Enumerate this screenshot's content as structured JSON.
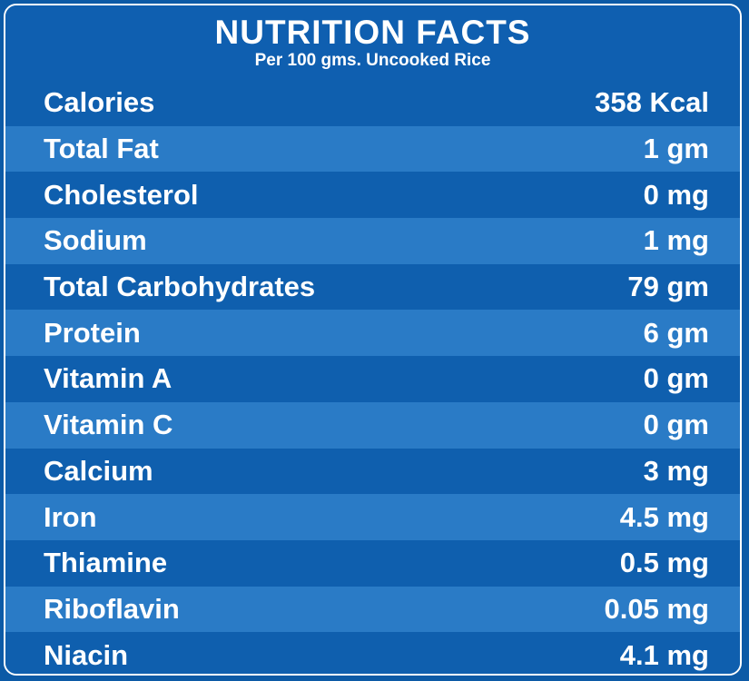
{
  "header": {
    "title": "NUTRITION FACTS",
    "subtitle": "Per 100 gms. Uncooked Rice"
  },
  "rows": [
    {
      "label": "Calories",
      "value": "358 Kcal"
    },
    {
      "label": "Total Fat",
      "value": "1 gm"
    },
    {
      "label": "Cholesterol",
      "value": "0 mg"
    },
    {
      "label": "Sodium",
      "value": "1 mg"
    },
    {
      "label": "Total Carbohydrates",
      "value": "79 gm"
    },
    {
      "label": "Protein",
      "value": "6 gm"
    },
    {
      "label": "Vitamin A",
      "value": "0 gm"
    },
    {
      "label": "Vitamin C",
      "value": "0 gm"
    },
    {
      "label": "Calcium",
      "value": "3 mg"
    },
    {
      "label": "Iron",
      "value": "4.5 mg"
    },
    {
      "label": "Thiamine",
      "value": "0.5 mg"
    },
    {
      "label": "Riboflavin",
      "value": "0.05 mg"
    },
    {
      "label": "Niacin",
      "value": "4.1 mg"
    }
  ],
  "colors": {
    "background": "#0c5aa6",
    "row_dark": "#0f5fae",
    "row_light": "#2a7bc6",
    "text": "#ffffff"
  }
}
